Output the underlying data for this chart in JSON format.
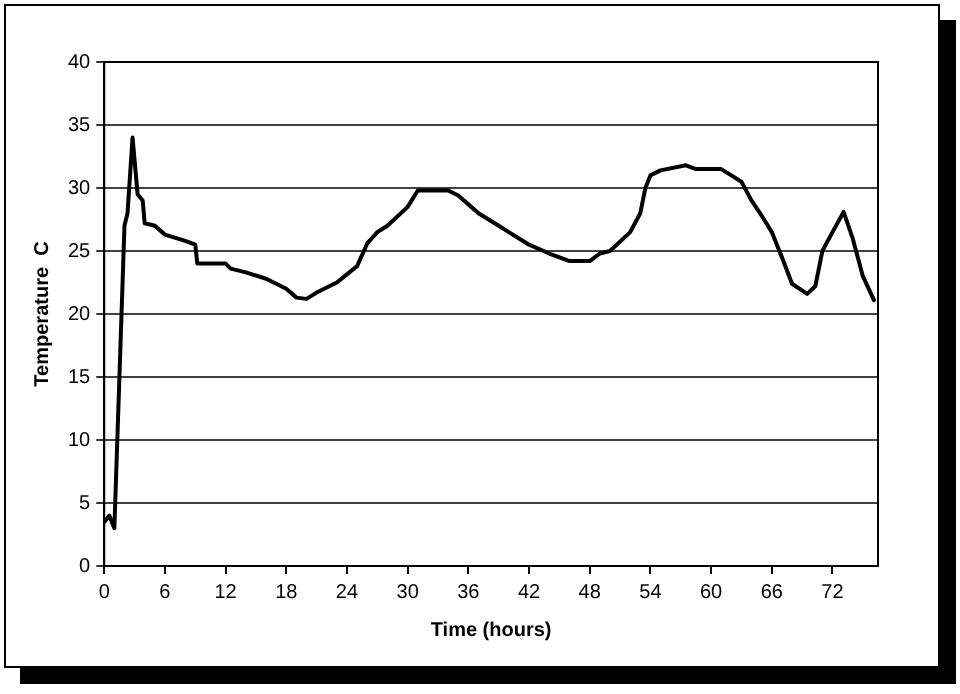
{
  "chart_data": {
    "type": "line",
    "xlabel": "Time (hours)",
    "ylabel": "Temperature  C",
    "x": [
      0,
      0.5,
      1,
      1.5,
      2,
      2.3,
      2.8,
      3.3,
      3.8,
      4,
      5,
      6,
      8,
      9,
      9.2,
      12,
      12.5,
      14,
      16,
      18,
      19,
      20,
      21,
      23,
      25,
      26,
      27,
      28,
      30,
      31,
      34,
      35,
      36,
      37,
      39,
      40,
      42,
      44,
      46,
      48,
      49,
      50,
      52,
      53,
      53.5,
      54,
      55,
      57.5,
      58.5,
      61,
      62,
      63,
      64,
      65,
      66,
      67,
      68,
      69.5,
      70.3,
      71,
      72,
      73.1,
      74,
      75,
      76.1
    ],
    "series": [
      {
        "color": "#000000",
        "values": [
          3.5,
          4,
          3,
          15,
          27,
          28,
          34,
          29.5,
          29,
          27.2,
          27,
          26.3,
          25.8,
          25.5,
          24,
          24,
          23.6,
          23.3,
          22.8,
          22,
          21.3,
          21.2,
          21.7,
          22.5,
          23.8,
          25.6,
          26.5,
          27,
          28.5,
          29.8,
          29.8,
          29.4,
          28.7,
          28,
          27,
          26.5,
          25.5,
          24.8,
          24.2,
          24.2,
          24.8,
          25,
          26.5,
          28,
          30,
          31,
          31.4,
          31.8,
          31.5,
          31.5,
          31,
          30.5,
          29,
          27.8,
          26.5,
          24.5,
          22.4,
          21.6,
          22.2,
          25,
          26.5,
          28.1,
          26,
          23,
          21.1
        ]
      }
    ],
    "xlim": [
      0,
      76.5
    ],
    "xticks": [
      0,
      6,
      12,
      18,
      24,
      30,
      36,
      42,
      48,
      54,
      60,
      66,
      72
    ],
    "ylim": [
      0,
      40
    ],
    "yticks": [
      0,
      5,
      10,
      15,
      20,
      25,
      30,
      35,
      40
    ],
    "grid": "y",
    "legend": false,
    "marker": "none",
    "line_style": "solid"
  }
}
